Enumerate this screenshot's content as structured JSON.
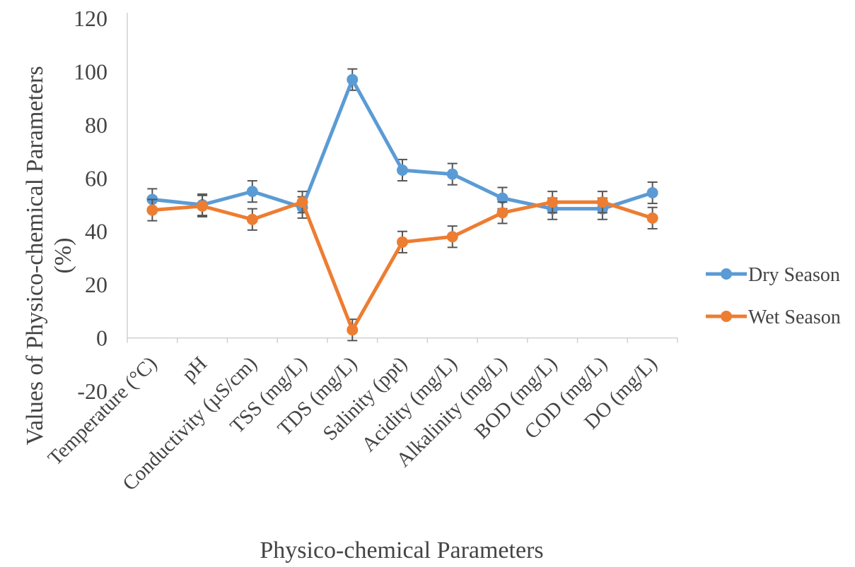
{
  "chart_data": {
    "type": "line",
    "xlabel": "Physico-chemical  Parameters",
    "ylabel_lines": [
      "Values of Physico-chemical  Parameters",
      "(%)"
    ],
    "ylim": [
      -20,
      120
    ],
    "yticks": [
      -20,
      0,
      20,
      40,
      60,
      80,
      100,
      120
    ],
    "grid": false,
    "legend_position": "right",
    "categories": [
      "Temperature (°C)",
      "pH",
      "Conductivity (µS/cm)",
      "TSS (mg/L)",
      "TDS (mg/L)",
      "Salinity (ppt)",
      "Acidity (mg/L)",
      "Alkalinity (mg/L)",
      "BOD (mg/L)",
      "COD (mg/L)",
      "DO (mg/L)"
    ],
    "series": [
      {
        "name": "Dry Season",
        "color": "#5B9BD5",
        "values": [
          52,
          50,
          55,
          49,
          97,
          63,
          61.5,
          52.5,
          48.5,
          48.5,
          54.5
        ],
        "error": [
          4,
          4,
          4,
          4,
          4,
          4,
          4,
          4,
          4,
          4,
          4
        ]
      },
      {
        "name": "Wet Season",
        "color": "#ED7D31",
        "values": [
          48,
          49.5,
          44.5,
          51,
          3,
          36,
          38,
          47,
          51,
          51,
          45
        ],
        "error": [
          4,
          4,
          4,
          4,
          4,
          4,
          4,
          4,
          4,
          4,
          4
        ]
      }
    ]
  }
}
